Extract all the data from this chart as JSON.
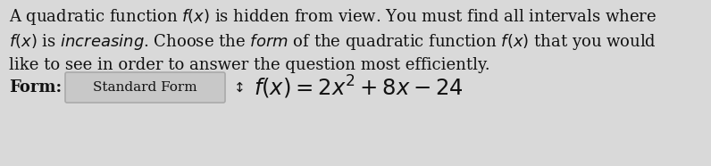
{
  "bg_color": "#d9d9d9",
  "paragraph_lines": [
    "A quadratic function $f(x)$ is hidden from view. You must find all intervals where",
    "$f(x)$ is $\\mathit{increasing}$. Choose the $\\mathit{form}$ of the quadratic function $f(x)$ that you would",
    "like to see in order to answer the question most efficiently."
  ],
  "form_label": "Form:",
  "form_box_text": "Standard Form",
  "equation": "$f(x) = 2x^2 + 8x - 24$",
  "font_size_paragraph": 13.0,
  "font_size_form": 13.0,
  "font_size_equation": 17.5,
  "font_size_box": 11.0,
  "text_color": "#111111",
  "box_edge_color": "#aaaaaa",
  "box_face_color": "#c8c8c8"
}
